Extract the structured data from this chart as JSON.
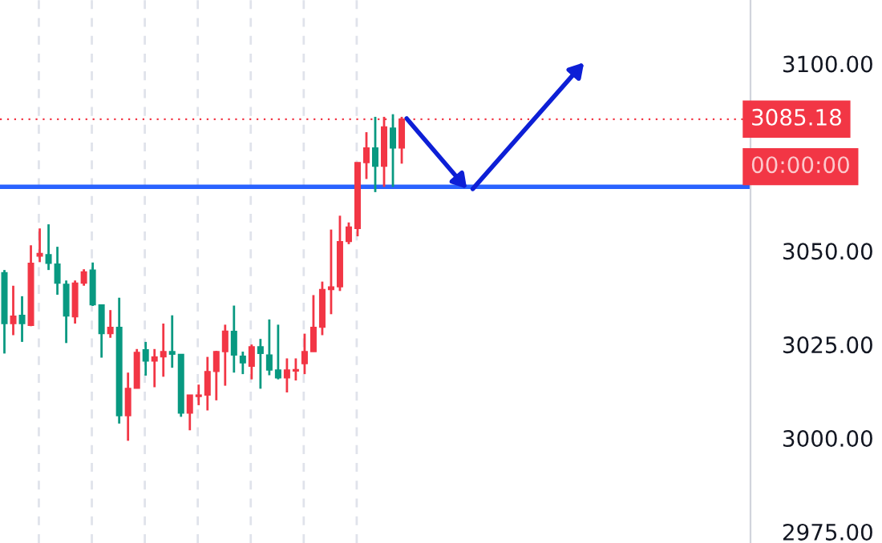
{
  "chart_data": {
    "type": "candlestick",
    "categories": [
      null,
      null,
      null,
      null,
      null,
      null,
      null,
      null,
      null,
      null,
      null,
      null,
      null,
      null,
      null,
      null,
      null,
      null,
      null,
      null,
      null,
      null,
      null,
      null,
      null,
      null,
      null,
      null,
      null,
      null,
      null,
      null,
      null,
      null,
      null,
      null,
      null,
      null,
      null,
      null,
      null,
      null,
      null,
      null,
      null,
      null,
      null,
      null,
      null,
      null,
      null,
      null,
      null,
      null,
      null,
      null,
      null,
      null,
      null,
      null,
      null,
      null,
      null,
      null,
      null,
      null,
      null,
      null,
      null,
      null,
      null,
      null,
      null,
      null,
      null,
      null,
      null,
      null,
      null,
      null,
      null,
      null,
      null,
      null,
      null
    ],
    "ohlc": [
      [
        3044.2,
        3044.9,
        3022.6,
        3030.6
      ],
      [
        3030.6,
        3040.7,
        3027.5,
        3032.6
      ],
      [
        3032.8,
        3037.9,
        3025.7,
        3030.6
      ],
      [
        3030.1,
        3051.5,
        3029.9,
        3046.7
      ],
      [
        3048.6,
        3056.0,
        3047.0,
        3049.3
      ],
      [
        3049.0,
        3057.1,
        3044.9,
        3046.7
      ],
      [
        3046.5,
        3051.1,
        3038.3,
        3041.4
      ],
      [
        3041.1,
        3042.1,
        3025.4,
        3032.6
      ],
      [
        3032.4,
        3042.1,
        3030.6,
        3041.4
      ],
      [
        3041.4,
        3045.1,
        3040.7,
        3044.4
      ],
      [
        3044.9,
        3046.9,
        3035.3,
        3035.6
      ],
      [
        3035.6,
        3035.6,
        3021.5,
        3027.9
      ],
      [
        3027.9,
        3034.2,
        3026.8,
        3029.6
      ],
      [
        3029.6,
        3037.5,
        3003.9,
        3006.0
      ],
      [
        3006.0,
        3017.5,
        2999.3,
        3013.3
      ],
      [
        3013.3,
        3023.8,
        3013.3,
        3022.9
      ],
      [
        3023.6,
        3025.7,
        3016.7,
        3020.6
      ],
      [
        3020.6,
        3023.8,
        3013.6,
        3021.7
      ],
      [
        3021.7,
        3030.6,
        3016.4,
        3023.1
      ],
      [
        3023.1,
        3032.8,
        3018.8,
        3022.4
      ],
      [
        3022.4,
        3022.4,
        3005.7,
        3006.7
      ],
      [
        3006.7,
        3011.5,
        3002.1,
        3011.5
      ],
      [
        3011.1,
        3014.3,
        3008.8,
        3011.5
      ],
      [
        3011.5,
        3021.7,
        3007.4,
        3017.8
      ],
      [
        3017.8,
        3023.3,
        3010.1,
        3023.1
      ],
      [
        3023.1,
        3030.3,
        3014.0,
        3028.6
      ],
      [
        3028.5,
        3035.4,
        3017.5,
        3022.2
      ],
      [
        3021.9,
        3023.1,
        3017.1,
        3020.1
      ],
      [
        3019.2,
        3025.0,
        3015.7,
        3024.4
      ],
      [
        3024.4,
        3026.5,
        3013.2,
        3022.6
      ],
      [
        3022.2,
        3031.7,
        3016.8,
        3018.2
      ],
      [
        3018.2,
        3030.3,
        3015.7,
        3016.1
      ],
      [
        3016.1,
        3021.3,
        3012.2,
        3018.2
      ],
      [
        3017.9,
        3021.3,
        3015.4,
        3018.3
      ],
      [
        3019.9,
        3027.9,
        3017.1,
        3023.1
      ],
      [
        3023.1,
        3038.2,
        3023.1,
        3029.6
      ],
      [
        3029.6,
        3041.8,
        3027.5,
        3039.7
      ],
      [
        3039.7,
        3055.7,
        3033.1,
        3040.4
      ],
      [
        3040.4,
        3059.4,
        3039.3,
        3052.5
      ],
      [
        3052.5,
        3057.6,
        3051.8,
        3056.4
      ],
      [
        3056.0,
        3073.6,
        3053.9,
        3073.6
      ],
      [
        3073.6,
        3081.7,
        3069.2,
        3077.5
      ],
      [
        3077.5,
        3085.8,
        3065.7,
        3072.6
      ],
      [
        3072.6,
        3085.8,
        3067.1,
        3083.1
      ],
      [
        3082.8,
        3086.5,
        3067.1,
        3077.5
      ],
      [
        3077.5,
        3085.8,
        3073.3,
        3085.18
      ],
      null,
      null,
      null,
      null,
      null,
      null,
      null,
      null,
      null,
      null,
      null,
      null,
      null,
      null,
      null,
      null,
      null,
      null,
      null,
      null,
      null,
      null,
      null,
      null,
      null,
      null,
      null,
      null,
      null,
      null,
      null,
      null,
      null,
      null,
      null,
      null,
      null,
      null,
      null
    ],
    "colors": [
      "#089981",
      "#f23645",
      "#089981",
      "#f23645",
      "#f23645",
      "#089981",
      "#089981",
      "#089981",
      "#f23645",
      "#f23645",
      "#089981",
      "#089981",
      "#f23645",
      "#089981",
      "#f23645",
      "#f23645",
      "#089981",
      "#f23645",
      "#f23645",
      "#089981",
      "#089981",
      "#f23645",
      "#f23645",
      "#f23645",
      "#f23645",
      "#f23645",
      "#089981",
      "#089981",
      "#f23645",
      "#089981",
      "#089981",
      "#089981",
      "#f23645",
      "#f23645",
      "#f23645",
      "#f23645",
      "#f23645",
      "#f23645",
      "#f23645",
      "#f23645",
      "#f23645",
      "#f23645",
      "#089981",
      "#f23645",
      "#089981",
      "#f23645",
      null,
      null,
      null,
      null,
      null,
      null,
      null,
      null,
      null,
      null,
      null,
      null,
      null,
      null,
      null,
      null,
      null,
      null,
      null,
      null,
      null,
      null,
      null,
      null,
      null,
      null,
      null,
      null,
      null,
      null,
      null,
      null,
      null,
      null,
      null,
      null,
      null,
      null,
      null
    ],
    "ylim": [
      2972,
      3117
    ],
    "yticks": [
      {
        "value": 2975,
        "label": "2975.00"
      },
      {
        "value": 3000,
        "label": "3000.00"
      },
      {
        "value": 3025,
        "label": "3025.00"
      },
      {
        "value": 3050,
        "label": "3050.00"
      },
      {
        "value": 3100,
        "label": "3100.00"
      }
    ],
    "tick_labels": "y",
    "grid": "x",
    "ref_lines": [
      {
        "axis": "y",
        "value": 3067.1,
        "color": "#2962ff",
        "line_style": "solid"
      },
      {
        "axis": "y",
        "value": 3085.18,
        "label": "3085.18",
        "color": "#f23645",
        "line_style": "dotted"
      }
    ],
    "annotations": [
      "00:00:00"
    ]
  }
}
